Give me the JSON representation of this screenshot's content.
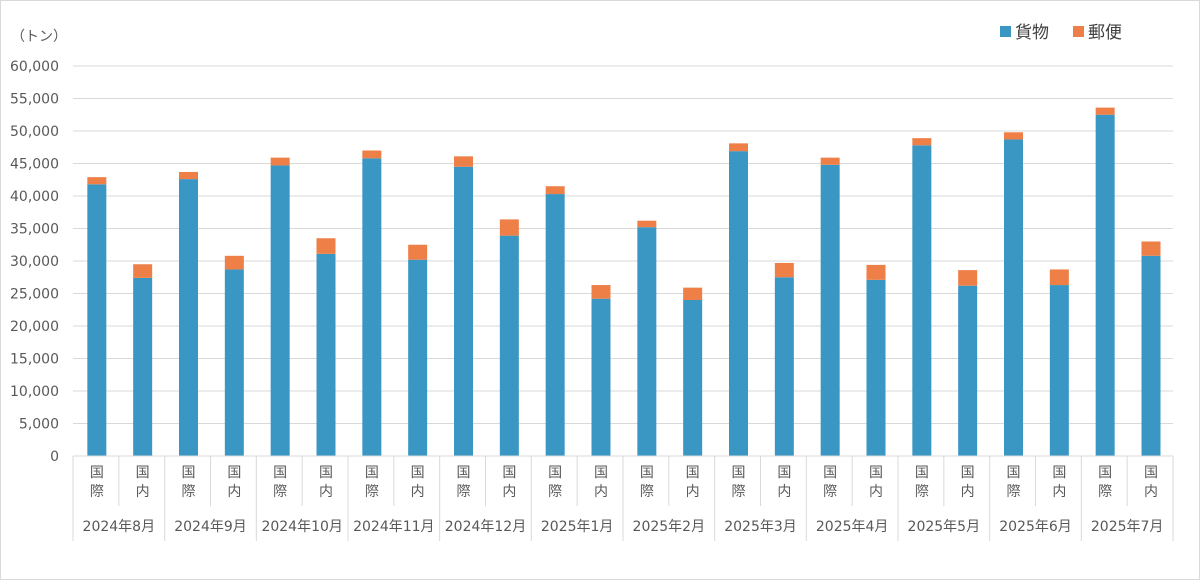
{
  "chart_data": {
    "type": "stacked-bar",
    "y_unit_label": "（トン）",
    "ylim": [
      0,
      60000
    ],
    "ytick_step": 5000,
    "ytick_labels": [
      "0",
      "5,000",
      "10,000",
      "15,000",
      "20,000",
      "25,000",
      "30,000",
      "35,000",
      "40,000",
      "45,000",
      "50,000",
      "55,000",
      "60,000"
    ],
    "grid": true,
    "legend_position": "top-right",
    "sub_categories": [
      "国際",
      "国内"
    ],
    "groups": [
      {
        "label": "2024年8月",
        "cargo": [
          41800,
          27400
        ],
        "mail": [
          1100,
          2100
        ]
      },
      {
        "label": "2024年9月",
        "cargo": [
          42600,
          28700
        ],
        "mail": [
          1100,
          2100
        ]
      },
      {
        "label": "2024年10月",
        "cargo": [
          44700,
          31100
        ],
        "mail": [
          1200,
          2400
        ]
      },
      {
        "label": "2024年11月",
        "cargo": [
          45800,
          30200
        ],
        "mail": [
          1200,
          2300
        ]
      },
      {
        "label": "2024年12月",
        "cargo": [
          44500,
          33900
        ],
        "mail": [
          1600,
          2500
        ]
      },
      {
        "label": "2025年1月",
        "cargo": [
          40300,
          24200
        ],
        "mail": [
          1200,
          2100
        ]
      },
      {
        "label": "2025年2月",
        "cargo": [
          35200,
          24000
        ],
        "mail": [
          1000,
          1900
        ]
      },
      {
        "label": "2025年3月",
        "cargo": [
          46900,
          27500
        ],
        "mail": [
          1200,
          2200
        ]
      },
      {
        "label": "2025年4月",
        "cargo": [
          44800,
          27100
        ],
        "mail": [
          1100,
          2300
        ]
      },
      {
        "label": "2025年5月",
        "cargo": [
          47800,
          26200
        ],
        "mail": [
          1100,
          2400
        ]
      },
      {
        "label": "2025年6月",
        "cargo": [
          48700,
          26300
        ],
        "mail": [
          1100,
          2400
        ]
      },
      {
        "label": "2025年7月",
        "cargo": [
          52500,
          30800
        ],
        "mail": [
          1100,
          2200
        ]
      }
    ],
    "series": [
      {
        "name": "貨物",
        "color": "#3a97c4"
      },
      {
        "name": "郵便",
        "color": "#ee7f47"
      }
    ]
  }
}
